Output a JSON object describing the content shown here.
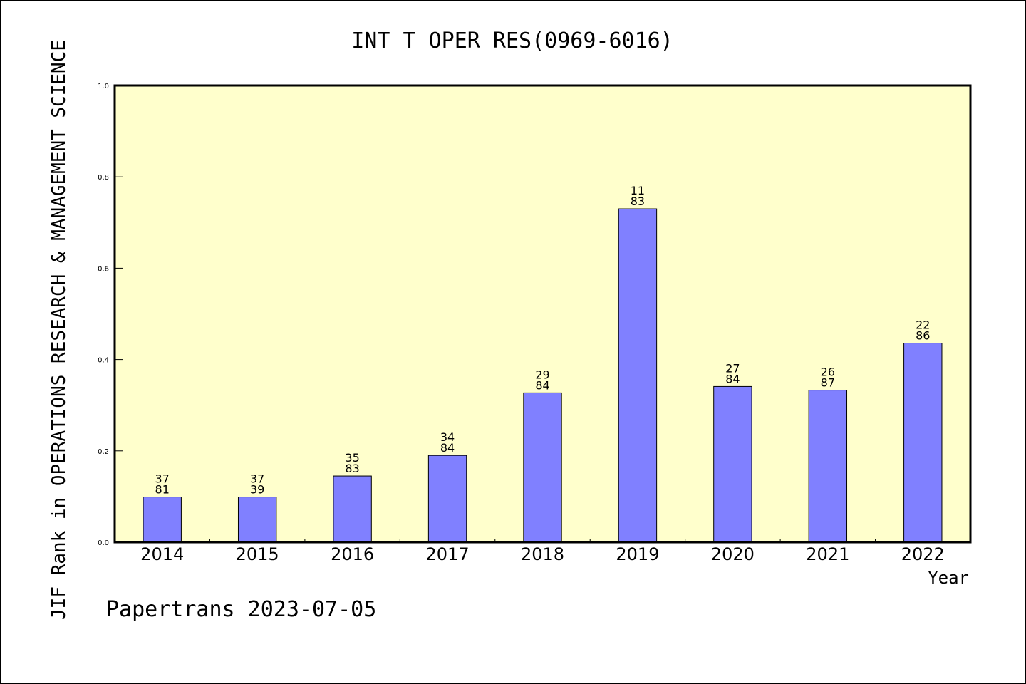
{
  "footer": "Papertrans 2023-07-05",
  "colors": {
    "plot_background": "#ffffcc",
    "bar_fill": "#8080ff",
    "bar_stroke": "#000000",
    "axis": "#000000"
  },
  "chart_data": {
    "type": "bar",
    "title": "INT T OPER RES(0969-6016)",
    "xlabel": "Year",
    "ylabel": "JIF Rank in OPERATIONS RESEARCH & MANAGEMENT SCIENCE",
    "ylim": [
      0,
      1.0
    ],
    "yticks": [
      "0.0",
      "0.2",
      "0.4",
      "0.6",
      "0.8",
      "1.0"
    ],
    "grid": false,
    "categories": [
      "2014",
      "2015",
      "2016",
      "2017",
      "2018",
      "2019",
      "2020",
      "2021",
      "2022"
    ],
    "values": [
      0.099,
      0.099,
      0.145,
      0.19,
      0.327,
      0.73,
      0.341,
      0.333,
      0.436
    ],
    "bar_labels": [
      [
        "37",
        "81"
      ],
      [
        "37",
        "39"
      ],
      [
        "35",
        "83"
      ],
      [
        "34",
        "84"
      ],
      [
        "29",
        "84"
      ],
      [
        "11",
        "83"
      ],
      [
        "27",
        "84"
      ],
      [
        "26",
        "87"
      ],
      [
        "22",
        "86"
      ]
    ]
  }
}
